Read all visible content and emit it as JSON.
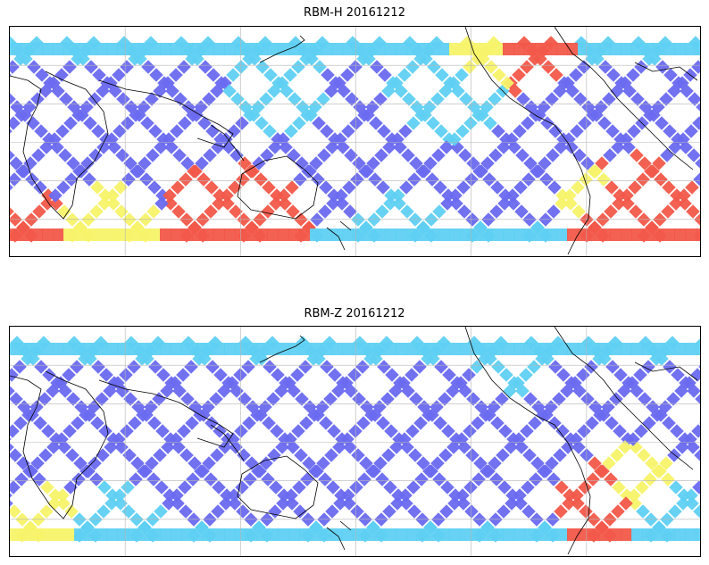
{
  "panels": [
    {
      "title": "RBM-H 20161212",
      "colors": {
        "base": "#6a6af0",
        "mid": "#5fd0f2",
        "warm": "#f7f36a",
        "hot": "#f2594a",
        "coast": "#000000",
        "grid": "#b5b5b5"
      }
    },
    {
      "title": "RBM-Z 20161212",
      "colors": {
        "base": "#6a6af0",
        "mid": "#5fd0f2",
        "warm": "#f7f36a",
        "hot": "#f2594a",
        "coast": "#000000",
        "grid": "#b5b5b5"
      }
    }
  ]
}
